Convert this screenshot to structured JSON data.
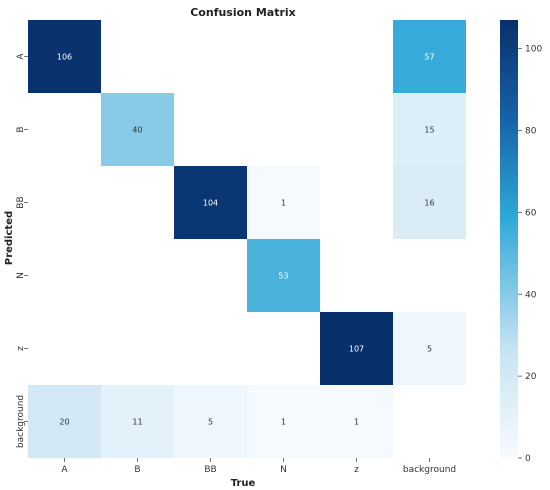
{
  "chart_data": {
    "type": "heatmap",
    "title": "Confusion Matrix",
    "xlabel": "True",
    "ylabel": "Predicted",
    "x_categories": [
      "A",
      "B",
      "BB",
      "N",
      "z",
      "background"
    ],
    "y_categories": [
      "A",
      "B",
      "BB",
      "N",
      "z",
      "background"
    ],
    "matrix": [
      [
        106,
        null,
        null,
        null,
        null,
        57
      ],
      [
        null,
        40,
        null,
        null,
        null,
        15
      ],
      [
        null,
        null,
        104,
        1,
        null,
        16
      ],
      [
        null,
        null,
        null,
        53,
        null,
        null
      ],
      [
        null,
        null,
        null,
        null,
        107,
        5
      ],
      [
        20,
        11,
        5,
        1,
        1,
        null
      ]
    ],
    "colorbar": {
      "min": 0,
      "max": 107,
      "ticks": [
        0,
        20,
        40,
        60,
        80,
        100
      ]
    },
    "colormap": "Blues",
    "colors": {
      "low": "#f7fbff",
      "mid": "#2da8d8",
      "high": "#08306b"
    }
  }
}
